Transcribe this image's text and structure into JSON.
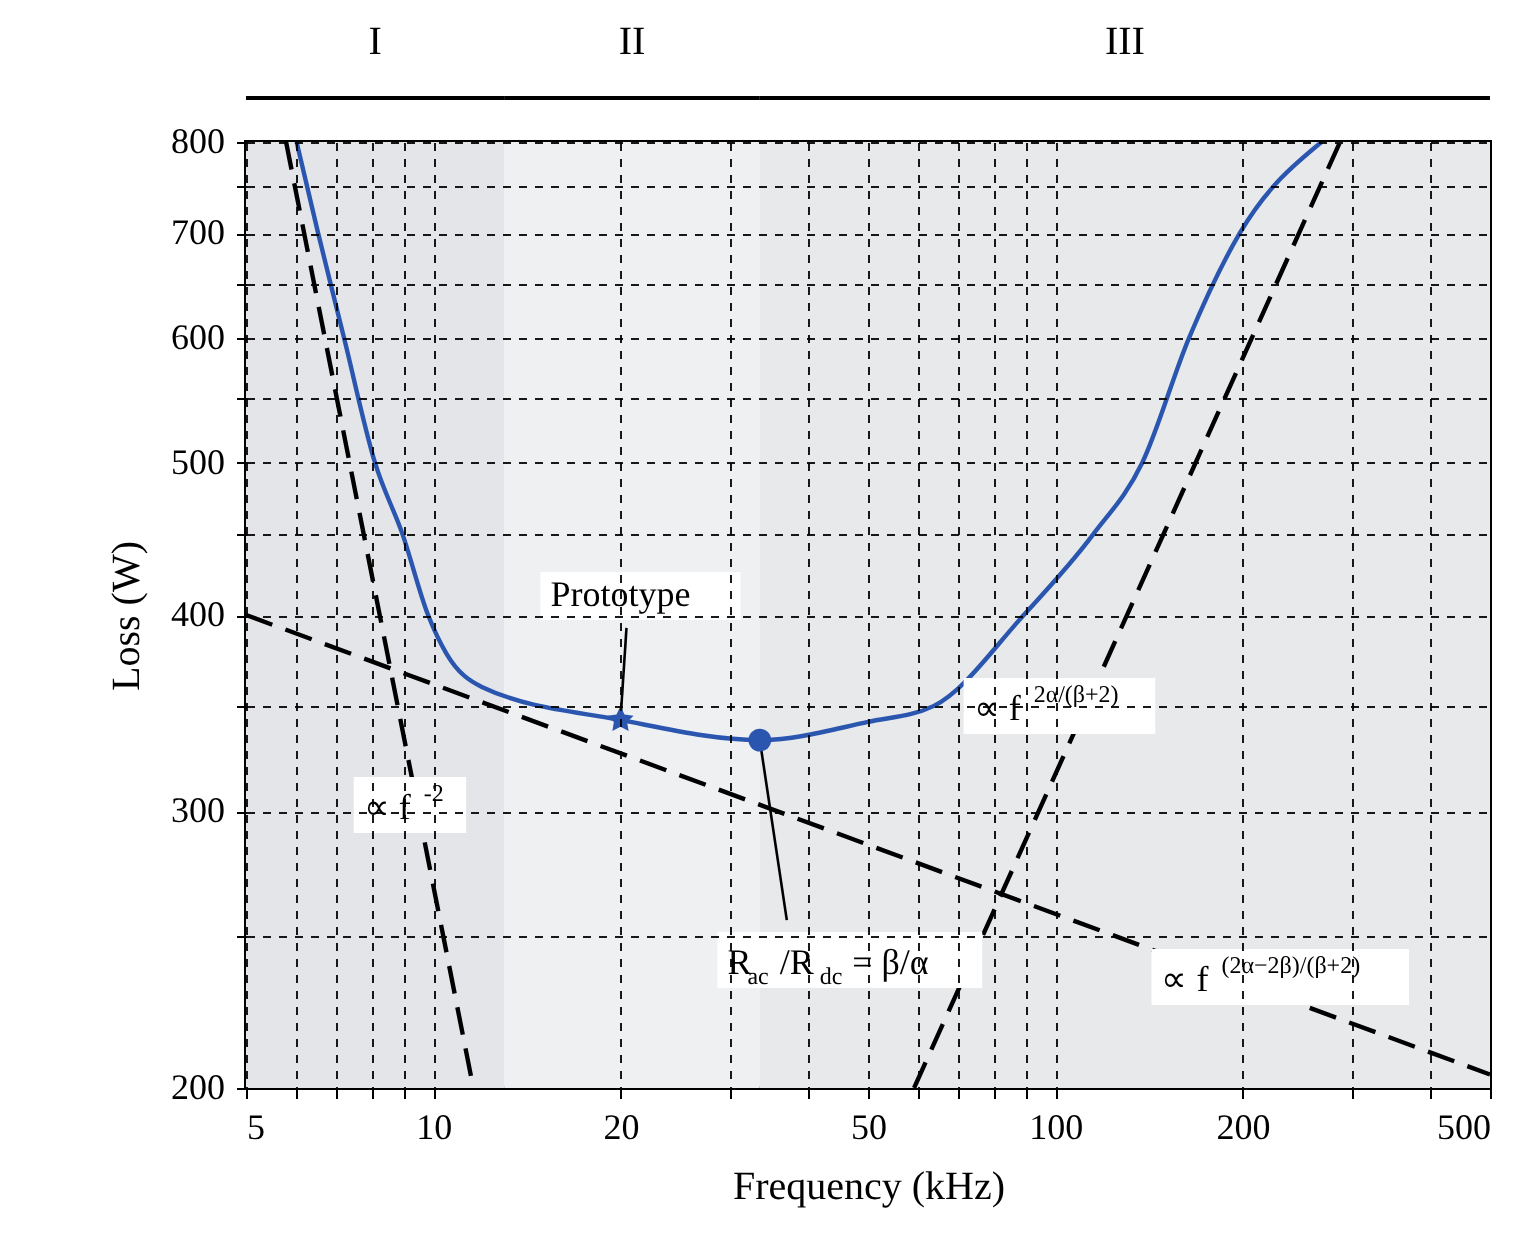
{
  "chart_data": {
    "type": "line",
    "xlabel": "Frequency (kHz)",
    "ylabel": "Loss (W)",
    "xlim": [
      5,
      500
    ],
    "ylim": [
      200,
      800
    ],
    "xticks": [
      5,
      {
        "value": 6,
        "label": null
      },
      {
        "value": 7,
        "label": null
      },
      {
        "value": 8,
        "label": null
      },
      {
        "value": 9,
        "label": null
      },
      10,
      20,
      {
        "value": 30,
        "label": null
      },
      {
        "value": 40,
        "label": null
      },
      50,
      {
        "value": 60,
        "label": null
      },
      {
        "value": 70,
        "label": null
      },
      {
        "value": 80,
        "label": null
      },
      {
        "value": 90,
        "label": null
      },
      100,
      200,
      {
        "value": 300,
        "label": null
      },
      {
        "value": 400,
        "label": null
      },
      500
    ],
    "yticks": [
      200,
      {
        "value": 250,
        "label": null
      },
      300,
      {
        "value": 350,
        "label": null
      },
      400,
      {
        "value": 450,
        "label": null
      },
      500,
      {
        "value": 550,
        "label": null
      },
      600,
      {
        "value": 650,
        "label": null
      },
      700,
      {
        "value": 750,
        "label": null
      },
      800
    ],
    "log": "xy",
    "grid": true,
    "series": [
      {
        "color": "#2a56b0",
        "line_style": "solid",
        "x": [
          6.03,
          6.53,
          7.19,
          8.06,
          8.93,
          9.81,
          10.5,
          11.97,
          20,
          33.5,
          50,
          63.7,
          89,
          115,
          138,
          164,
          198,
          268
        ],
        "values": [
          800,
          700,
          600,
          500,
          450,
          400,
          378,
          360,
          343,
          333,
          342,
          350,
          400,
          450,
          500,
          600,
          700,
          800
        ]
      },
      {
        "color": "#000000",
        "line_style": "dashed",
        "x": [
          5.8,
          11.6
        ],
        "values": [
          800,
          200
        ]
      },
      {
        "color": "#000000",
        "line_style": "dashed",
        "x": [
          5,
          500
        ],
        "values": [
          400,
          204
        ]
      },
      {
        "color": "#000000",
        "line_style": "dashed",
        "x": [
          59.3,
          287
        ],
        "values": [
          200,
          800
        ]
      },
      {
        "type": "scatter",
        "color": "#2a56b0",
        "marker": "star",
        "x": [
          20
        ],
        "values": [
          343
        ]
      },
      {
        "type": "scatter",
        "color": "#2a56b0",
        "marker": "circle",
        "x": [
          33.5
        ],
        "values": [
          333
        ]
      }
    ],
    "bands": [
      {
        "axis": "x",
        "from": 5,
        "to": 13,
        "label": "I",
        "color": "#e3e5e8"
      },
      {
        "axis": "x",
        "from": 13,
        "to": 33.5,
        "label": "II",
        "color": "#eef0f2"
      },
      {
        "axis": "x",
        "from": 33.5,
        "to": 500,
        "label": "III",
        "color": "#e7e9eb"
      }
    ],
    "annotations": [
      {
        "text": "Prototype",
        "x": 20,
        "y": 343
      },
      {
        "text": "R$_{ac}$/R$_{dc}$ = β/α",
        "x": 33.5,
        "y": 333
      },
      {
        "text": "∝ f$^{-2}$",
        "x": 9.45,
        "y": 301
      },
      {
        "text": "∝ f$^{2α/(β+2)}$",
        "x": 111,
        "y": 348
      },
      {
        "text": "∝ f$^{(2α−2β)/(β+2)}$",
        "x": 230,
        "y": 228.5
      }
    ]
  }
}
